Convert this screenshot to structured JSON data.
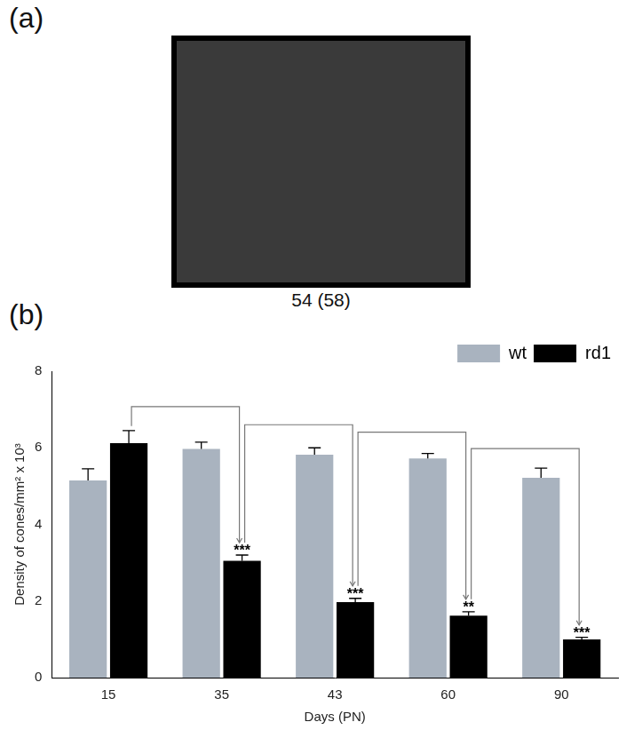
{
  "panel_a": {
    "label": "(a)",
    "caption": "54 (58)"
  },
  "chart_data": {
    "type": "bar",
    "panel_label": "(b)",
    "categories": [
      "15",
      "35",
      "43",
      "60",
      "90"
    ],
    "x_label": "Days (PN)",
    "y_label": "Density of cones/mm² x 10³",
    "series": [
      {
        "name": "wt",
        "color": "#a9b3bf",
        "values": [
          5.15,
          5.97,
          5.82,
          5.72,
          5.22
        ],
        "errors": [
          0.3,
          0.18,
          0.18,
          0.13,
          0.25
        ]
      },
      {
        "name": "rd1",
        "color": "#000000",
        "values": [
          6.12,
          3.05,
          1.97,
          1.62,
          1.0
        ],
        "errors": [
          0.33,
          0.15,
          0.1,
          0.1,
          0.05
        ],
        "significance": [
          null,
          "***",
          "***",
          "**",
          "***"
        ]
      }
    ],
    "ylim": [
      0,
      8
    ],
    "yticks": [
      0,
      2,
      4,
      6,
      8
    ],
    "grid": false,
    "legend": "top-right"
  }
}
